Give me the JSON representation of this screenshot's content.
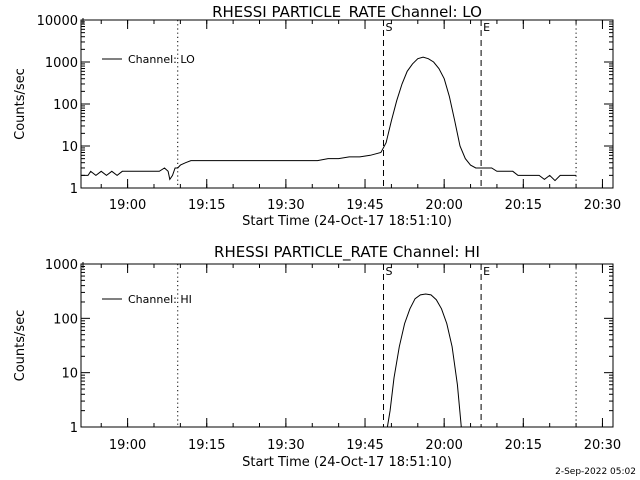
{
  "footer": "2-Sep-2022 05:02",
  "chart_data": [
    {
      "type": "line",
      "title": "RHESSI PARTICLE_RATE Channel: LO",
      "xlabel": "Start Time (24-Oct-17 18:51:10)",
      "ylabel": "Counts/sec",
      "yscale": "log",
      "ylim": [
        1,
        10000
      ],
      "xlim": [
        "18:51:10",
        "20:32:00"
      ],
      "xticks": [
        "19:00",
        "19:15",
        "19:30",
        "19:45",
        "20:00",
        "20:15",
        "20:30"
      ],
      "yticks": [
        "1",
        "10",
        "100",
        "1000",
        "10000"
      ],
      "grid": false,
      "legend": {
        "position": "top-left",
        "entries": [
          "Channel: LO"
        ]
      },
      "markers": [
        {
          "label": "",
          "time": "19:09:30",
          "style": "dotted"
        },
        {
          "label": "S",
          "time": "19:48:30",
          "style": "dashed"
        },
        {
          "label": "E",
          "time": "20:07:00",
          "style": "dashed"
        },
        {
          "label": "",
          "time": "20:25:00",
          "style": "dotted"
        }
      ],
      "series": [
        {
          "name": "Channel: LO",
          "x": [
            "18:51:10",
            "18:52:30",
            "18:53:00",
            "18:54:00",
            "18:55:00",
            "18:56:00",
            "18:57:00",
            "18:58:00",
            "18:59:00",
            "19:00:00",
            "19:02:00",
            "19:04:00",
            "19:05:00",
            "19:06:00",
            "19:07:00",
            "19:07:40",
            "19:08:00",
            "19:08:30",
            "19:09:00",
            "19:09:30",
            "19:10:00",
            "19:11:00",
            "19:12:00",
            "19:14:00",
            "19:16:00",
            "19:18:00",
            "19:20:00",
            "19:22:00",
            "19:24:00",
            "19:26:00",
            "19:28:00",
            "19:30:00",
            "19:32:00",
            "19:34:00",
            "19:36:00",
            "19:38:00",
            "19:40:00",
            "19:42:00",
            "19:44:00",
            "19:46:00",
            "19:48:00",
            "19:49:00",
            "19:50:00",
            "19:51:00",
            "19:52:00",
            "19:53:00",
            "19:54:00",
            "19:55:00",
            "19:56:00",
            "19:57:00",
            "19:58:00",
            "19:59:00",
            "20:00:00",
            "20:01:00",
            "20:02:00",
            "20:03:00",
            "20:04:00",
            "20:05:00",
            "20:06:00",
            "20:07:00",
            "20:08:00",
            "20:09:00",
            "20:10:00",
            "20:11:00",
            "20:12:00",
            "20:13:00",
            "20:14:00",
            "20:15:00",
            "20:16:00",
            "20:17:00",
            "20:18:00",
            "20:19:00",
            "20:20:00",
            "20:21:00",
            "20:22:00",
            "20:23:00",
            "20:24:00",
            "20:25:00"
          ],
          "y": [
            2,
            2,
            2.5,
            2,
            2.5,
            2,
            2.5,
            2,
            2.5,
            2.5,
            2.5,
            2.5,
            2.5,
            2.5,
            3,
            2.5,
            1.6,
            2,
            3,
            3,
            3.5,
            4,
            4.5,
            4.5,
            4.5,
            4.5,
            4.5,
            4.5,
            4.5,
            4.5,
            4.5,
            4.5,
            4.5,
            4.5,
            4.5,
            5,
            5,
            5.5,
            5.5,
            6,
            7,
            12,
            40,
            120,
            300,
            600,
            900,
            1200,
            1300,
            1200,
            1000,
            700,
            400,
            150,
            40,
            10,
            5,
            3.5,
            3,
            3,
            3,
            3,
            2.5,
            2.5,
            2.5,
            2.5,
            2,
            2,
            2,
            2,
            2,
            1.6,
            2,
            1.5,
            2,
            2,
            2,
            2
          ]
        }
      ]
    },
    {
      "type": "line",
      "title": "RHESSI PARTICLE_RATE Channel: HI",
      "xlabel": "Start Time (24-Oct-17 18:51:10)",
      "ylabel": "Counts/sec",
      "yscale": "log",
      "ylim": [
        1,
        1000
      ],
      "xlim": [
        "18:51:10",
        "20:32:00"
      ],
      "xticks": [
        "19:00",
        "19:15",
        "19:30",
        "19:45",
        "20:00",
        "20:15",
        "20:30"
      ],
      "yticks": [
        "1",
        "10",
        "100",
        "1000"
      ],
      "grid": false,
      "legend": {
        "position": "top-left",
        "entries": [
          "Channel: HI"
        ]
      },
      "markers": [
        {
          "label": "",
          "time": "19:09:30",
          "style": "dotted"
        },
        {
          "label": "S",
          "time": "19:48:30",
          "style": "dashed"
        },
        {
          "label": "E",
          "time": "20:07:00",
          "style": "dashed"
        },
        {
          "label": "",
          "time": "20:25:00",
          "style": "dotted"
        }
      ],
      "series": [
        {
          "name": "Channel: HI",
          "x": [
            "19:49:15",
            "19:49:45",
            "19:50:30",
            "19:51:30",
            "19:52:30",
            "19:53:30",
            "19:54:30",
            "19:55:30",
            "19:56:30",
            "19:57:30",
            "19:58:30",
            "19:59:30",
            "20:00:30",
            "20:01:30",
            "20:02:30",
            "20:03:15"
          ],
          "y": [
            1,
            2,
            8,
            30,
            80,
            150,
            230,
            270,
            280,
            270,
            220,
            150,
            80,
            30,
            6,
            1
          ]
        }
      ]
    }
  ]
}
